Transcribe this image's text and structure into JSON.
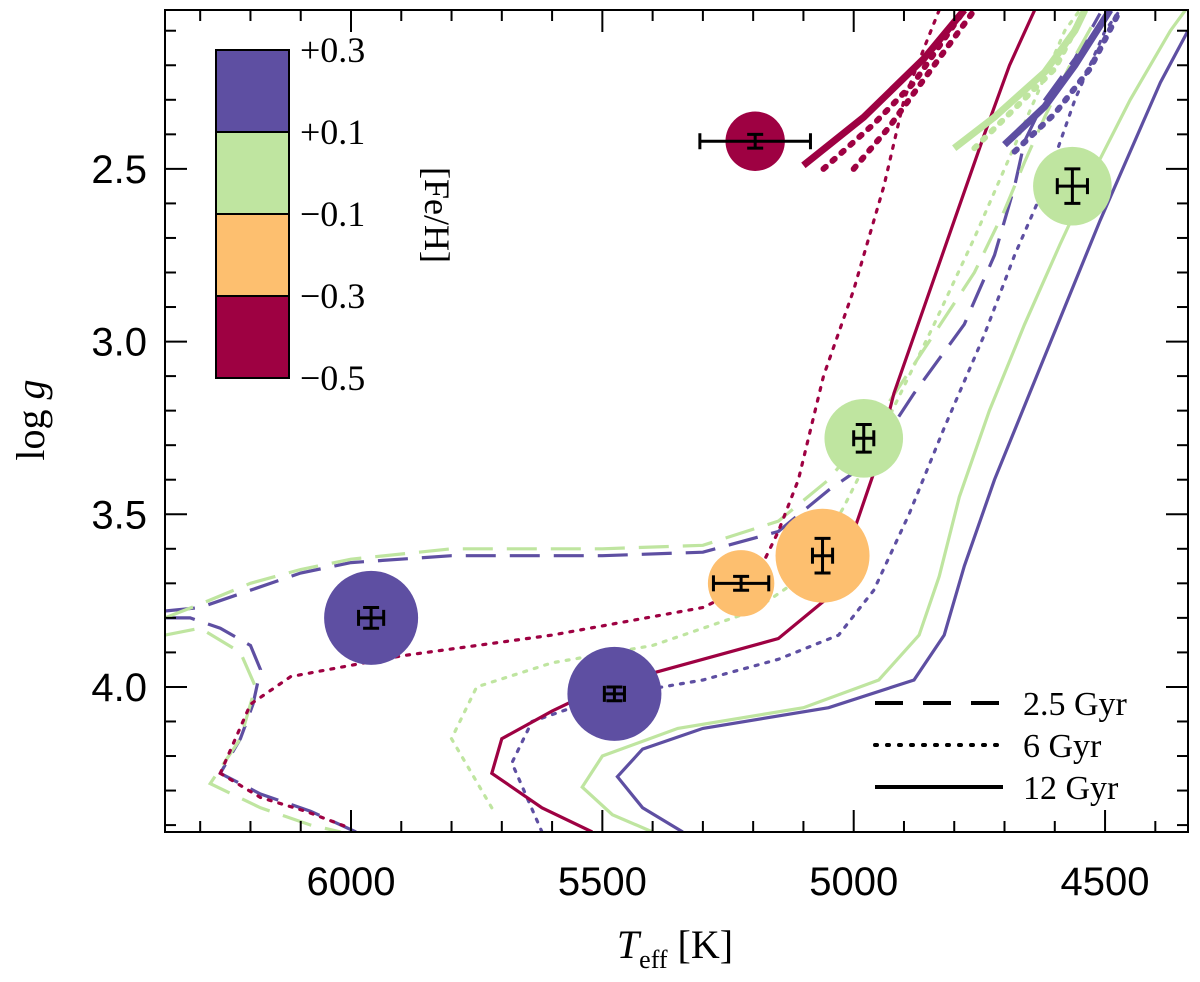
{
  "chart_data": {
    "type": "scatter",
    "xlabel": {
      "main": "T",
      "sub": "eff",
      "unit": " [K]"
    },
    "ylabel": {
      "main": "log ",
      "italic": "g"
    },
    "xlim": [
      6370,
      4335
    ],
    "ylim": [
      4.42,
      2.04
    ],
    "x_ticks": [
      {
        "value": 6000,
        "label": "6000"
      },
      {
        "value": 5500,
        "label": "5500"
      },
      {
        "value": 5000,
        "label": "5000"
      },
      {
        "value": 4500,
        "label": "4500"
      }
    ],
    "x_minor_step": 100,
    "y_ticks": [
      {
        "value": 2.5,
        "label": "2.5"
      },
      {
        "value": 3.0,
        "label": "3.0"
      },
      {
        "value": 3.5,
        "label": "3.5"
      },
      {
        "value": 4.0,
        "label": "4.0"
      }
    ],
    "y_minor_step": 0.1,
    "colorbar": {
      "title": "[Fe/H]",
      "labels": [
        "+0.3",
        "+0.1",
        "−0.1",
        "−0.3",
        "−0.5"
      ],
      "colors": [
        "#5e4fa2",
        "#bfe5a0",
        "#fdbf6f",
        "#9e0142"
      ]
    },
    "legend": [
      {
        "label": "2.5 Gyr",
        "style": "dashed"
      },
      {
        "label": "6 Gyr",
        "style": "dotted"
      },
      {
        "label": "12 Gyr",
        "style": "solid"
      }
    ],
    "points": [
      {
        "teff": 5196,
        "logg": 2.42,
        "teff_err": 110,
        "logg_err": 0.02,
        "color": "#9e0142",
        "size": 0.4
      },
      {
        "teff": 4565,
        "logg": 2.55,
        "teff_err": 30,
        "logg_err": 0.05,
        "color": "#bfe5a0",
        "size": 0.7
      },
      {
        "teff": 4980,
        "logg": 3.28,
        "teff_err": 20,
        "logg_err": 0.04,
        "color": "#bfe5a0",
        "size": 0.7
      },
      {
        "teff": 5062,
        "logg": 3.62,
        "teff_err": 20,
        "logg_err": 0.05,
        "color": "#fdbf6f",
        "size": 1.0
      },
      {
        "teff": 5224,
        "logg": 3.7,
        "teff_err": 55,
        "logg_err": 0.02,
        "color": "#fdbf6f",
        "size": 0.5
      },
      {
        "teff": 5960,
        "logg": 3.8,
        "teff_err": 25,
        "logg_err": 0.03,
        "color": "#5e4fa2",
        "size": 1.0
      },
      {
        "teff": 5476,
        "logg": 4.02,
        "teff_err": 20,
        "logg_err": 0.02,
        "color": "#5e4fa2",
        "size": 1.0
      }
    ],
    "isochrones": [
      {
        "feh": "+0.3",
        "age": "2.5 Gyr",
        "color": "#5e4fa2",
        "style": "dashed",
        "points": [
          [
            6370,
            3.78
          ],
          [
            6300,
            3.77
          ],
          [
            6200,
            3.72
          ],
          [
            6100,
            3.67
          ],
          [
            6000,
            3.64
          ],
          [
            5800,
            3.62
          ],
          [
            5500,
            3.62
          ],
          [
            5300,
            3.61
          ],
          [
            5150,
            3.55
          ],
          [
            5050,
            3.43
          ],
          [
            4970,
            3.35
          ],
          [
            4880,
            3.15
          ],
          [
            4780,
            2.95
          ],
          [
            4720,
            2.75
          ],
          [
            4680,
            2.55
          ],
          [
            4660,
            2.42
          ],
          [
            4620,
            2.3
          ],
          [
            4560,
            2.18
          ],
          [
            4510,
            2.05
          ]
        ],
        "lower": [
          [
            6370,
            3.8
          ],
          [
            6320,
            3.8
          ],
          [
            6260,
            3.83
          ],
          [
            6200,
            3.88
          ],
          [
            6180,
            3.95
          ],
          [
            6195,
            4.05
          ],
          [
            6220,
            4.15
          ],
          [
            6260,
            4.25
          ],
          [
            6180,
            4.31
          ],
          [
            6080,
            4.36
          ],
          [
            5990,
            4.42
          ]
        ]
      },
      {
        "feh": "+0.1",
        "age": "2.5 Gyr",
        "color": "#bfe5a0",
        "style": "dashed",
        "points": [
          [
            6370,
            3.8
          ],
          [
            6300,
            3.76
          ],
          [
            6200,
            3.7
          ],
          [
            6100,
            3.66
          ],
          [
            6000,
            3.63
          ],
          [
            5800,
            3.6
          ],
          [
            5500,
            3.6
          ],
          [
            5300,
            3.59
          ],
          [
            5150,
            3.52
          ],
          [
            5050,
            3.4
          ],
          [
            4950,
            3.22
          ],
          [
            4850,
            3.0
          ],
          [
            4760,
            2.8
          ],
          [
            4700,
            2.62
          ],
          [
            4660,
            2.48
          ],
          [
            4620,
            2.35
          ],
          [
            4570,
            2.2
          ],
          [
            4520,
            2.07
          ]
        ],
        "lower": [
          [
            6370,
            3.85
          ],
          [
            6300,
            3.83
          ],
          [
            6220,
            3.9
          ],
          [
            6190,
            4.0
          ],
          [
            6220,
            4.15
          ],
          [
            6280,
            4.28
          ],
          [
            6180,
            4.35
          ],
          [
            6080,
            4.4
          ],
          [
            6020,
            4.42
          ]
        ]
      },
      {
        "feh": "-0.5",
        "age": "6 Gyr",
        "color": "#9e0142",
        "style": "dotted",
        "points": [
          [
            6260,
            4.25
          ],
          [
            6230,
            4.15
          ],
          [
            6200,
            4.05
          ],
          [
            6120,
            3.97
          ],
          [
            5900,
            3.91
          ],
          [
            5600,
            3.85
          ],
          [
            5300,
            3.77
          ],
          [
            5200,
            3.7
          ],
          [
            5150,
            3.55
          ],
          [
            5110,
            3.4
          ],
          [
            5060,
            3.1
          ],
          [
            5000,
            2.85
          ],
          [
            4940,
            2.55
          ],
          [
            4900,
            2.3
          ],
          [
            4860,
            2.15
          ],
          [
            4830,
            2.04
          ]
        ],
        "lower": [
          [
            6260,
            4.25
          ],
          [
            6180,
            4.32
          ],
          [
            6090,
            4.36
          ],
          [
            6000,
            4.41
          ]
        ]
      },
      {
        "feh": "+0.1",
        "age": "6 Gyr",
        "color": "#bfe5a0",
        "style": "dotted",
        "points": [
          [
            5720,
            4.35
          ],
          [
            5800,
            4.15
          ],
          [
            5750,
            4.0
          ],
          [
            5600,
            3.93
          ],
          [
            5400,
            3.88
          ],
          [
            5200,
            3.78
          ],
          [
            5100,
            3.68
          ],
          [
            5020,
            3.48
          ],
          [
            4930,
            3.22
          ],
          [
            4840,
            2.95
          ],
          [
            4760,
            2.7
          ],
          [
            4700,
            2.5
          ],
          [
            4640,
            2.3
          ],
          [
            4580,
            2.1
          ],
          [
            4550,
            2.04
          ]
        ]
      },
      {
        "feh": "+0.3",
        "age": "6 Gyr",
        "color": "#5e4fa2",
        "style": "dotted",
        "points": [
          [
            5620,
            4.42
          ],
          [
            5680,
            4.22
          ],
          [
            5640,
            4.1
          ],
          [
            5500,
            4.03
          ],
          [
            5300,
            3.98
          ],
          [
            5150,
            3.92
          ],
          [
            5030,
            3.85
          ],
          [
            4960,
            3.72
          ],
          [
            4890,
            3.5
          ],
          [
            4820,
            3.25
          ],
          [
            4740,
            2.98
          ],
          [
            4680,
            2.75
          ],
          [
            4620,
            2.55
          ],
          [
            4560,
            2.3
          ],
          [
            4500,
            2.1
          ],
          [
            4470,
            2.04
          ]
        ]
      },
      {
        "feh": "-0.5",
        "age": "12 Gyr",
        "color": "#9e0142",
        "style": "solid",
        "points": [
          [
            5520,
            4.42
          ],
          [
            5620,
            4.35
          ],
          [
            5720,
            4.25
          ],
          [
            5700,
            4.15
          ],
          [
            5600,
            4.07
          ],
          [
            5500,
            4.0
          ],
          [
            5350,
            3.94
          ],
          [
            5150,
            3.86
          ],
          [
            5050,
            3.74
          ],
          [
            5000,
            3.55
          ],
          [
            4960,
            3.38
          ],
          [
            4920,
            3.15
          ],
          [
            4860,
            2.9
          ],
          [
            4800,
            2.65
          ],
          [
            4740,
            2.4
          ],
          [
            4690,
            2.2
          ],
          [
            4640,
            2.04
          ]
        ]
      },
      {
        "feh": "+0.1",
        "age": "12 Gyr",
        "color": "#bfe5a0",
        "style": "solid",
        "points": [
          [
            5400,
            4.42
          ],
          [
            5480,
            4.37
          ],
          [
            5540,
            4.29
          ],
          [
            5500,
            4.2
          ],
          [
            5350,
            4.12
          ],
          [
            5100,
            4.06
          ],
          [
            4950,
            3.98
          ],
          [
            4870,
            3.85
          ],
          [
            4830,
            3.68
          ],
          [
            4790,
            3.45
          ],
          [
            4730,
            3.2
          ],
          [
            4660,
            2.95
          ],
          [
            4590,
            2.72
          ],
          [
            4520,
            2.5
          ],
          [
            4450,
            2.3
          ],
          [
            4370,
            2.1
          ],
          [
            4340,
            2.04
          ]
        ]
      },
      {
        "feh": "+0.3",
        "age": "12 Gyr",
        "color": "#5e4fa2",
        "style": "solid",
        "points": [
          [
            5340,
            4.42
          ],
          [
            5420,
            4.35
          ],
          [
            5470,
            4.26
          ],
          [
            5420,
            4.18
          ],
          [
            5300,
            4.12
          ],
          [
            5050,
            4.06
          ],
          [
            4880,
            3.98
          ],
          [
            4820,
            3.85
          ],
          [
            4780,
            3.65
          ],
          [
            4720,
            3.4
          ],
          [
            4650,
            3.15
          ],
          [
            4580,
            2.9
          ],
          [
            4510,
            2.65
          ],
          [
            4450,
            2.45
          ],
          [
            4390,
            2.25
          ],
          [
            4335,
            2.1
          ]
        ]
      }
    ],
    "rgb_segments": [
      {
        "color": "#9e0142",
        "style": "solid",
        "points": [
          [
            5100,
            2.49
          ],
          [
            4980,
            2.35
          ],
          [
            4860,
            2.18
          ],
          [
            4780,
            2.04
          ]
        ]
      },
      {
        "color": "#9e0142",
        "style": "dotted",
        "points": [
          [
            5060,
            2.5
          ],
          [
            4960,
            2.37
          ],
          [
            4880,
            2.25
          ],
          [
            4780,
            2.04
          ]
        ]
      },
      {
        "color": "#9e0142",
        "style": "dotted",
        "points": [
          [
            5000,
            2.5
          ],
          [
            4930,
            2.38
          ],
          [
            4850,
            2.22
          ],
          [
            4760,
            2.04
          ]
        ]
      },
      {
        "color": "#bfe5a0",
        "style": "solid",
        "points": [
          [
            4800,
            2.44
          ],
          [
            4720,
            2.35
          ],
          [
            4620,
            2.22
          ],
          [
            4560,
            2.1
          ],
          [
            4540,
            2.04
          ]
        ]
      },
      {
        "color": "#bfe5a0",
        "style": "dotted",
        "points": [
          [
            4760,
            2.44
          ],
          [
            4690,
            2.34
          ],
          [
            4600,
            2.21
          ],
          [
            4540,
            2.04
          ]
        ]
      },
      {
        "color": "#5e4fa2",
        "style": "solid",
        "points": [
          [
            4700,
            2.43
          ],
          [
            4620,
            2.32
          ],
          [
            4560,
            2.2
          ],
          [
            4490,
            2.04
          ]
        ]
      },
      {
        "color": "#5e4fa2",
        "style": "dotted",
        "points": [
          [
            4680,
            2.45
          ],
          [
            4600,
            2.34
          ],
          [
            4530,
            2.21
          ],
          [
            4470,
            2.04
          ]
        ]
      }
    ]
  }
}
